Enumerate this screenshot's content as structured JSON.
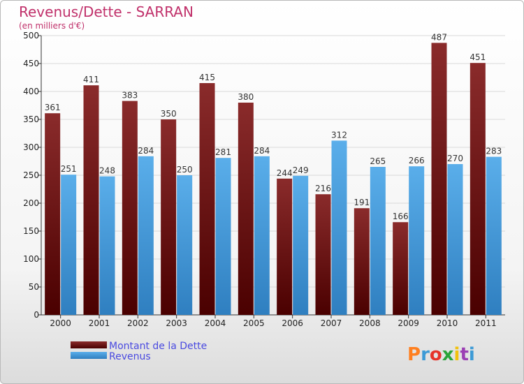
{
  "chart_data": {
    "type": "bar",
    "title": "Revenus/Dette - SARRAN",
    "subtitle": "(en milliers d'€)",
    "categories": [
      "2000",
      "2001",
      "2002",
      "2003",
      "2004",
      "2005",
      "2006",
      "2007",
      "2008",
      "2009",
      "2010",
      "2011"
    ],
    "series": [
      {
        "name": "Montant de la Dette",
        "values": [
          361,
          411,
          383,
          350,
          415,
          380,
          244,
          216,
          191,
          166,
          487,
          451
        ],
        "color": "#7a1a1a"
      },
      {
        "name": "Revenus",
        "values": [
          251,
          248,
          284,
          250,
          281,
          284,
          249,
          312,
          265,
          266,
          270,
          283
        ],
        "color": "#4fa3e3"
      }
    ],
    "ylim": [
      0,
      500
    ],
    "yticks": [
      0,
      50,
      100,
      150,
      200,
      250,
      300,
      350,
      400,
      450,
      500
    ],
    "grid": true,
    "legend_position": "bottom-left"
  },
  "branding": {
    "logo_text": "Proxiti",
    "logo_colors": [
      "#ff7f1f",
      "#3c9ad6",
      "#e63329",
      "#2aa43a",
      "#f1c10d",
      "#9b3fb4",
      "#3c9ad6"
    ]
  }
}
